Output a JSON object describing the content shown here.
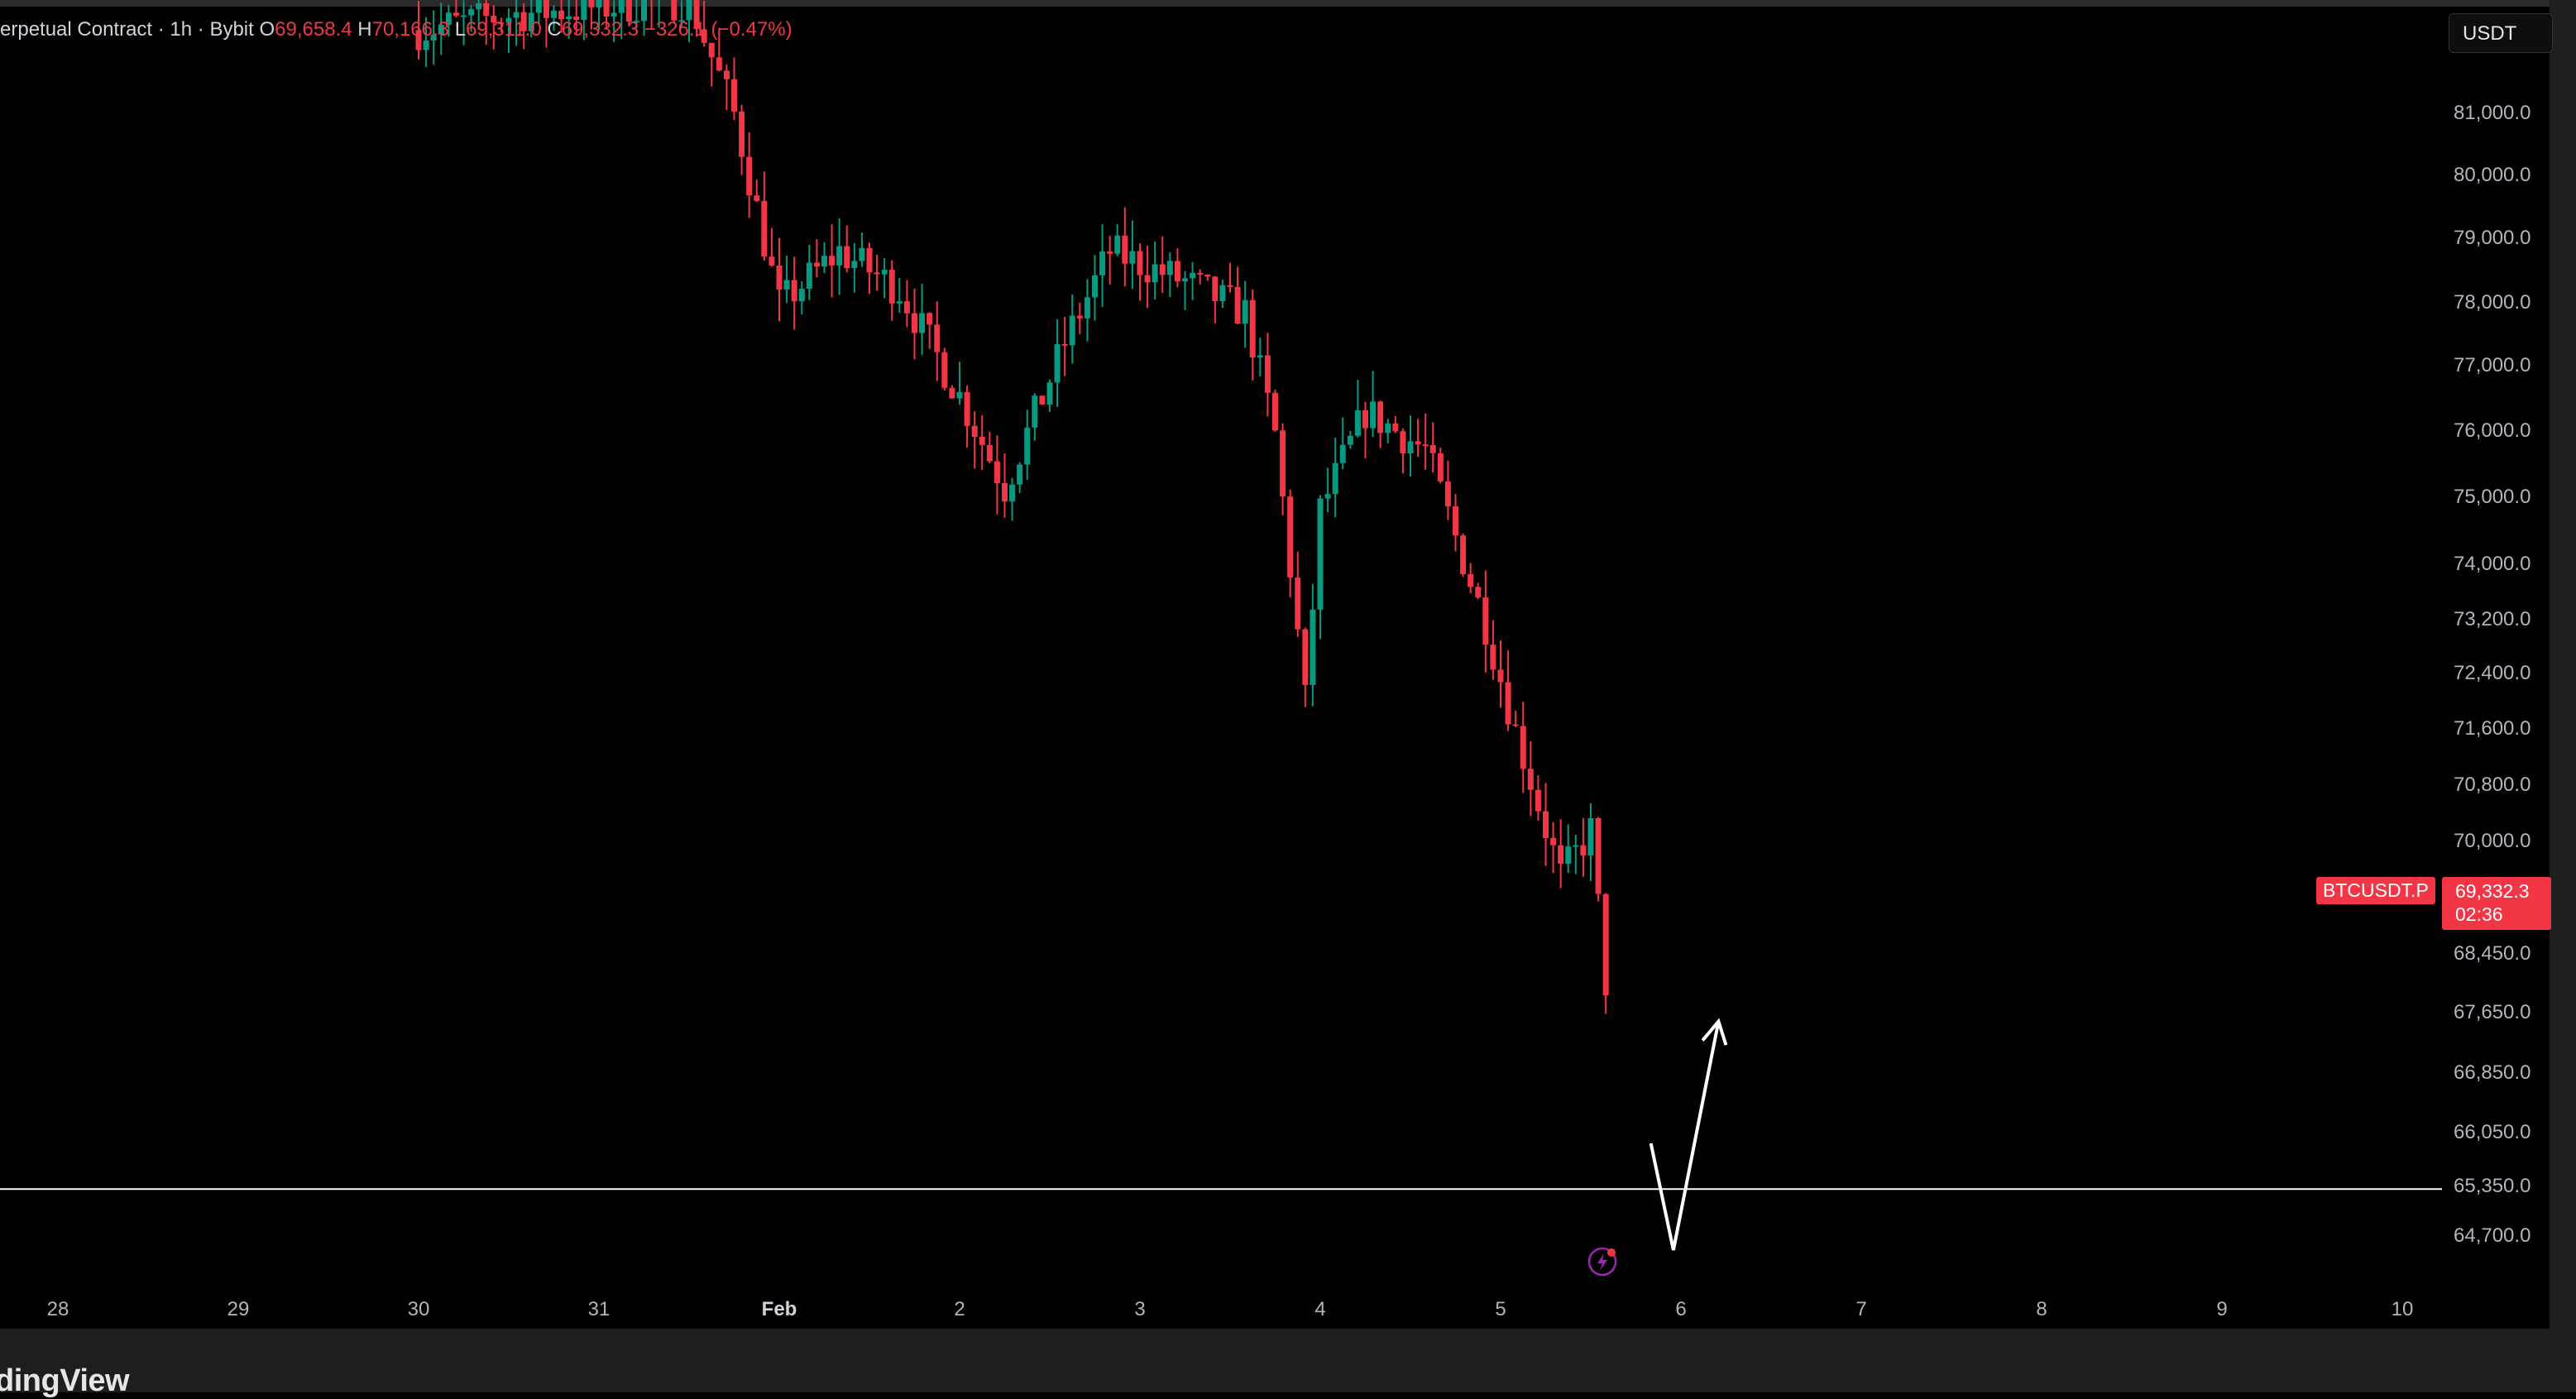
{
  "legend": {
    "symbol_desc": "erpetual Contract · 1h · Bybit",
    "o_label": "O",
    "o_value": "69,658.4",
    "h_label": "H",
    "h_value": "70,166.3",
    "l_label": "L",
    "l_value": "69,311.0",
    "c_label": "C",
    "c_value": "69,332.3",
    "change": "−326.1 (−0.47%)"
  },
  "currency_button": "USDT",
  "price_tag": {
    "symbol": "BTCUSDT.P",
    "price": "69,332.3",
    "countdown": "02:36"
  },
  "brand": "dingView",
  "colors": {
    "up": "#089981",
    "down": "#f23645",
    "background": "#000000",
    "hline": "#ffffff"
  },
  "icons": [
    "lightning-icon"
  ],
  "chart_data": {
    "type": "candlestick",
    "title": "",
    "xlabel": "",
    "ylabel": "",
    "x_ticks": [
      "28",
      "29",
      "30",
      "31",
      "Feb",
      "2",
      "3",
      "4",
      "5",
      "6",
      "7",
      "8",
      "9",
      "10"
    ],
    "y_ticks": [
      "81,000.0",
      "80,000.0",
      "79,000.0",
      "78,000.0",
      "77,000.0",
      "76,000.0",
      "75,000.0",
      "74,000.0",
      "73,200.0",
      "72,400.0",
      "71,600.0",
      "70,800.0",
      "70,000.0",
      "68,450.0",
      "67,650.0",
      "66,850.0",
      "66,050.0",
      "65,350.0",
      "64,700.0"
    ],
    "ylim": [
      64400,
      81600
    ],
    "grid": false,
    "horizontal_line": 66600,
    "annotation_arrow": [
      {
        "date": "Feb 5 20:00",
        "price": 67200
      },
      {
        "date": "Feb 5 23:00",
        "price": 65800
      },
      {
        "date": "Feb 6 05:00",
        "price": 68800
      }
    ],
    "series_path": [
      {
        "date": "Jan 30 00:00",
        "price": 81800
      },
      {
        "date": "Jan 30 12:00",
        "price": 82000
      },
      {
        "date": "Jan 31 12:00",
        "price": 82200
      },
      {
        "date": "Jan 31 18:00",
        "price": 80700
      },
      {
        "date": "Feb 1 00:00",
        "price": 78200
      },
      {
        "date": "Feb 1 08:00",
        "price": 78900
      },
      {
        "date": "Feb 1 16:00",
        "price": 78400
      },
      {
        "date": "Feb 2 00:00",
        "price": 77000
      },
      {
        "date": "Feb 2 06:00",
        "price": 75800
      },
      {
        "date": "Feb 2 14:00",
        "price": 77700
      },
      {
        "date": "Feb 2 20:00",
        "price": 78900
      },
      {
        "date": "Feb 3 06:00",
        "price": 78500
      },
      {
        "date": "Feb 3 14:00",
        "price": 78100
      },
      {
        "date": "Feb 3 18:00",
        "price": 76500
      },
      {
        "date": "Feb 3 22:00",
        "price": 73000
      },
      {
        "date": "Feb 4 00:00",
        "price": 75500
      },
      {
        "date": "Feb 4 06:00",
        "price": 76800
      },
      {
        "date": "Feb 4 14:00",
        "price": 76300
      },
      {
        "date": "Feb 4 22:00",
        "price": 74000
      },
      {
        "date": "Feb 5 02:00",
        "price": 72600
      },
      {
        "date": "Feb 5 08:00",
        "price": 70700
      },
      {
        "date": "Feb 5 12:00",
        "price": 71300
      },
      {
        "date": "Feb 5 14:00",
        "price": 69300
      }
    ]
  }
}
